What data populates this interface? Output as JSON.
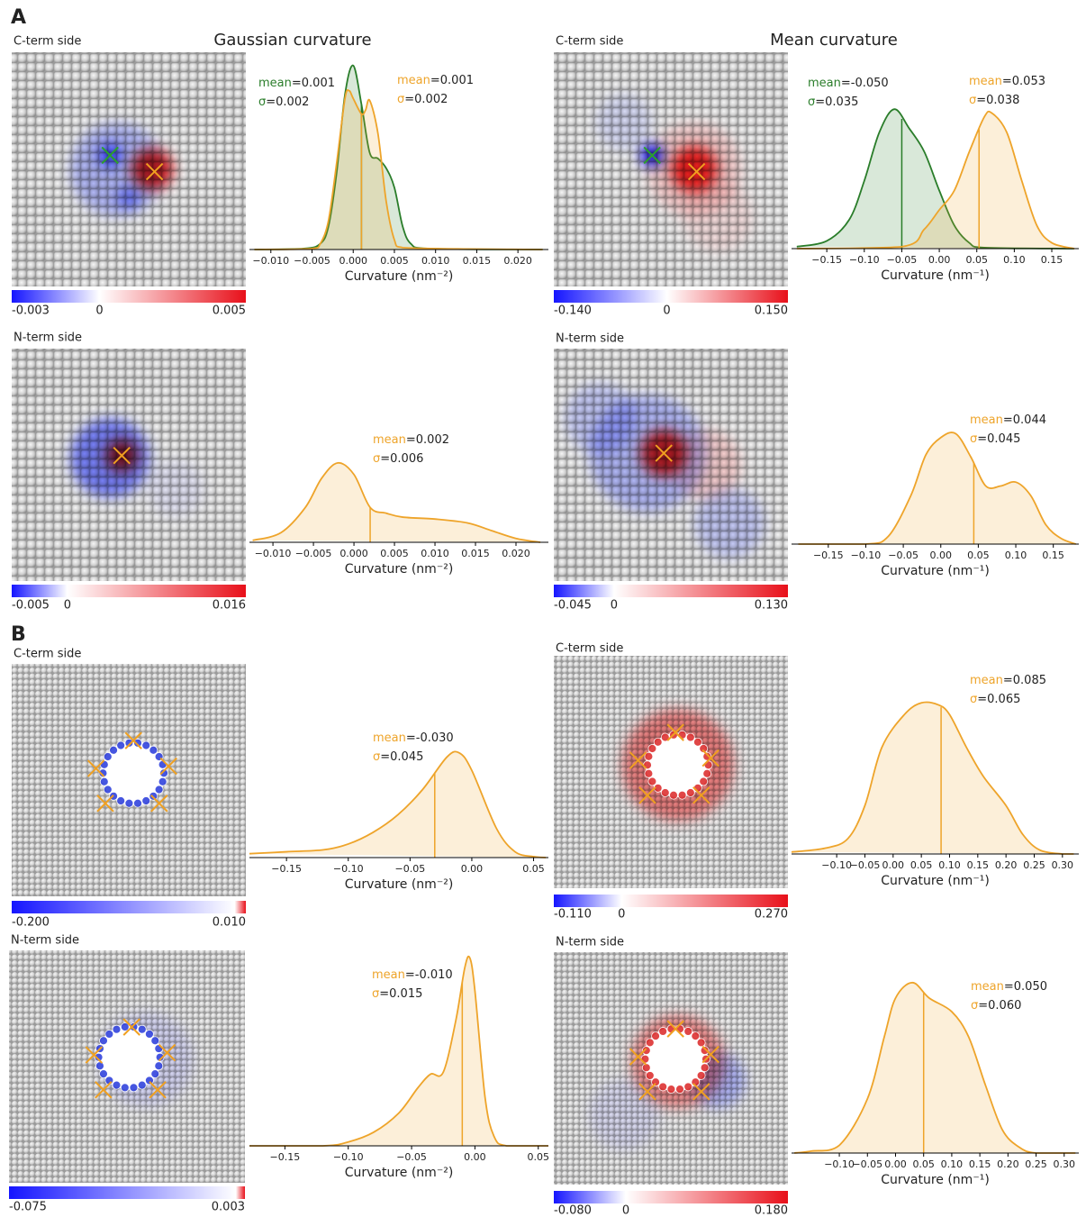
{
  "panel_labels": [
    "A",
    "B"
  ],
  "column_titles": [
    "Gaussian curvature",
    "Mean curvature"
  ],
  "images": [
    {
      "side": "C-term side",
      "colorbar_ticks": [
        -0.003,
        0,
        0.005
      ]
    },
    {
      "side": "C-term side",
      "colorbar_ticks": [
        {
          "value": -0.14,
          "label": "-0.140"
        },
        0,
        {
          "value": 0.15,
          "label": "0.150"
        }
      ]
    },
    {
      "side": "N-term side",
      "colorbar_ticks": [
        -0.005,
        0,
        0.016
      ]
    },
    {
      "side": "N-term side",
      "colorbar_ticks": [
        -0.045,
        0,
        {
          "value": 0.13,
          "label": "0.130"
        }
      ]
    },
    {
      "side": "C-term side",
      "colorbar_ticks": [
        {
          "value": -0.2,
          "label": "-0.200"
        },
        {
          "value": 0.01,
          "label": "0.010"
        }
      ]
    },
    {
      "side": "C-term side",
      "colorbar_ticks": [
        {
          "value": -0.11,
          "label": "-0.110"
        },
        0,
        {
          "value": 0.27,
          "label": "0.270"
        }
      ]
    },
    {
      "side": "N-term side",
      "colorbar_ticks": [
        -0.075,
        0.003
      ]
    },
    {
      "side": "N-term side",
      "colorbar_ticks": [
        {
          "value": -0.08,
          "label": "-0.080"
        },
        0,
        {
          "value": 0.18,
          "label": "0.180"
        }
      ]
    }
  ],
  "chart_data": [
    {
      "type": "density",
      "x_label": "Curvature (nm⁻²)",
      "xlim": [
        -0.0126,
        0.0237
      ],
      "ylim": [
        0,
        1
      ],
      "xticks": [
        {
          "value": -0.01,
          "label": "−0.010"
        },
        {
          "value": -0.005,
          "label": "−0.005"
        },
        {
          "value": 0,
          "label": "0.000"
        },
        0.005,
        {
          "value": 0.01,
          "label": "0.010"
        },
        0.015,
        {
          "value": 0.02,
          "label": "0.020"
        }
      ],
      "series": [
        {
          "color": "#2a7d2a",
          "x": [
            -0.012,
            -0.006,
            -0.004,
            -0.003,
            -0.002,
            -0.001,
            0,
            0.001,
            0.002,
            0.003,
            0.004,
            0.005,
            0.006,
            0.007,
            0.009,
            0.023
          ],
          "values": [
            0,
            0.005,
            0.03,
            0.12,
            0.4,
            0.8,
            0.95,
            0.75,
            0.5,
            0.47,
            0.42,
            0.32,
            0.12,
            0.03,
            0.005,
            0
          ],
          "mean": {
            "value": 0.001,
            "label": "mean=0.001"
          },
          "sigma": "σ=0.002"
        },
        {
          "color": "#eea42a",
          "x": [
            -0.012,
            -0.005,
            -0.004,
            -0.003,
            -0.002,
            -0.001,
            -0.0005,
            0,
            0.001,
            0.0015,
            0.002,
            0.003,
            0.004,
            0.005,
            0.006,
            0.023
          ],
          "values": [
            0,
            0.005,
            0.03,
            0.15,
            0.45,
            0.78,
            0.82,
            0.78,
            0.7,
            0.72,
            0.77,
            0.6,
            0.25,
            0.05,
            0.01,
            0
          ],
          "mean": {
            "value": 0.001,
            "label": "mean=0.001"
          },
          "sigma": "σ=0.002"
        }
      ]
    },
    {
      "type": "density",
      "x_label": "Curvature (nm⁻¹)",
      "xlim": [
        -0.197,
        0.186
      ],
      "ylim": [
        0,
        1
      ],
      "xticks": [
        {
          "value": -0.15,
          "label": "−0.15"
        },
        {
          "value": -0.1,
          "label": "−0.10"
        },
        {
          "value": -0.05,
          "label": "−0.05"
        },
        {
          "value": 0,
          "label": "0.00"
        },
        0.05,
        {
          "value": 0.1,
          "label": "0.10"
        },
        0.15
      ],
      "series": [
        {
          "color": "#2a7d2a",
          "x": [
            -0.19,
            -0.15,
            -0.12,
            -0.1,
            -0.08,
            -0.06,
            -0.04,
            -0.02,
            0,
            0.02,
            0.04,
            0.06,
            0.18
          ],
          "values": [
            0.01,
            0.04,
            0.15,
            0.35,
            0.6,
            0.72,
            0.62,
            0.5,
            0.3,
            0.12,
            0.03,
            0.005,
            0
          ],
          "mean": {
            "value": -0.05,
            "label": "mean=-0.050"
          },
          "sigma": "σ=0.035"
        },
        {
          "color": "#eea42a",
          "x": [
            -0.19,
            -0.05,
            -0.02,
            0,
            0.02,
            0.04,
            0.06,
            0.07,
            0.09,
            0.11,
            0.13,
            0.15,
            0.18
          ],
          "values": [
            0,
            0.01,
            0.1,
            0.2,
            0.3,
            0.5,
            0.68,
            0.7,
            0.6,
            0.35,
            0.12,
            0.03,
            0
          ],
          "mean": {
            "value": 0.053,
            "label": "mean=0.053"
          },
          "sigma": "σ=0.038"
        }
      ]
    },
    {
      "type": "density",
      "x_label": "Curvature (nm⁻²)",
      "xlim": [
        -0.0129,
        0.024
      ],
      "ylim": [
        0,
        1
      ],
      "xticks": [
        {
          "value": -0.01,
          "label": "−0.010"
        },
        {
          "value": -0.005,
          "label": "−0.005"
        },
        {
          "value": 0,
          "label": "0.000"
        },
        0.005,
        {
          "value": 0.01,
          "label": "0.010"
        },
        0.015,
        {
          "value": 0.02,
          "label": "0.020"
        }
      ],
      "series": [
        {
          "color": "#eea42a",
          "x": [
            -0.0125,
            -0.009,
            -0.006,
            -0.004,
            -0.002,
            0,
            0.002,
            0.004,
            0.006,
            0.01,
            0.014,
            0.017,
            0.02,
            0.023
          ],
          "values": [
            0.01,
            0.05,
            0.18,
            0.33,
            0.41,
            0.35,
            0.18,
            0.15,
            0.13,
            0.12,
            0.1,
            0.06,
            0.02,
            0
          ],
          "mean": {
            "value": 0.002,
            "label": "mean=0.002"
          },
          "sigma": "σ=0.006"
        }
      ]
    },
    {
      "type": "density",
      "x_label": "Curvature (nm⁻¹)",
      "xlim": [
        -0.199,
        0.184
      ],
      "ylim": [
        0,
        1
      ],
      "xticks": [
        {
          "value": -0.15,
          "label": "−0.15"
        },
        {
          "value": -0.1,
          "label": "−0.10"
        },
        {
          "value": -0.05,
          "label": "−0.05"
        },
        {
          "value": 0,
          "label": "0.00"
        },
        0.05,
        {
          "value": 0.1,
          "label": "0.10"
        },
        0.15
      ],
      "series": [
        {
          "color": "#eea42a",
          "x": [
            -0.19,
            -0.1,
            -0.07,
            -0.04,
            -0.02,
            0,
            0.02,
            0.04,
            0.06,
            0.08,
            0.1,
            0.12,
            0.14,
            0.16,
            0.18
          ],
          "values": [
            0,
            0,
            0.04,
            0.25,
            0.46,
            0.55,
            0.57,
            0.45,
            0.3,
            0.3,
            0.32,
            0.25,
            0.1,
            0.03,
            0
          ],
          "mean": {
            "value": 0.044,
            "label": "mean=0.044"
          },
          "sigma": "σ=0.045"
        }
      ]
    },
    {
      "type": "density",
      "x_label": "Curvature (nm⁻²)",
      "xlim": [
        -0.18,
        0.062
      ],
      "ylim": [
        0,
        1
      ],
      "xticks": [
        {
          "value": -0.15,
          "label": "−0.15"
        },
        {
          "value": -0.1,
          "label": "−0.10"
        },
        {
          "value": -0.05,
          "label": "−0.05"
        },
        {
          "value": 0,
          "label": "0.00"
        },
        0.05
      ],
      "series": [
        {
          "color": "#eea42a",
          "x": [
            -0.18,
            -0.15,
            -0.12,
            -0.1,
            -0.08,
            -0.06,
            -0.04,
            -0.02,
            -0.01,
            0,
            0.02,
            0.035,
            0.05,
            0.06
          ],
          "values": [
            0.02,
            0.03,
            0.04,
            0.07,
            0.13,
            0.22,
            0.35,
            0.52,
            0.54,
            0.45,
            0.15,
            0.03,
            0.005,
            0
          ],
          "mean": {
            "value": -0.03,
            "label": "mean=-0.030"
          },
          "sigma": "σ=0.045"
        }
      ]
    },
    {
      "type": "density",
      "x_label": "Curvature (nm⁻¹)",
      "xlim": [
        -0.18,
        0.329
      ],
      "ylim": [
        0,
        1
      ],
      "xticks": [
        {
          "value": -0.1,
          "label": "−0.10"
        },
        {
          "value": -0.05,
          "label": "−0.05"
        },
        {
          "value": 0,
          "label": "0.00"
        },
        0.05,
        {
          "value": 0.1,
          "label": "0.10"
        },
        0.15,
        {
          "value": 0.2,
          "label": "0.20"
        },
        0.25,
        {
          "value": 0.3,
          "label": "0.30"
        }
      ],
      "series": [
        {
          "color": "#eea42a",
          "x": [
            -0.18,
            -0.12,
            -0.08,
            -0.05,
            -0.02,
            0.02,
            0.05,
            0.08,
            0.1,
            0.13,
            0.16,
            0.2,
            0.23,
            0.26,
            0.3,
            0.32
          ],
          "values": [
            0.01,
            0.03,
            0.08,
            0.25,
            0.55,
            0.72,
            0.78,
            0.77,
            0.72,
            0.55,
            0.4,
            0.25,
            0.1,
            0.02,
            0,
            0
          ],
          "mean": {
            "value": 0.085,
            "label": "mean=0.085"
          },
          "sigma": "σ=0.065"
        }
      ]
    },
    {
      "type": "density",
      "x_label": "Curvature (nm⁻²)",
      "xlim": [
        -0.178,
        0.058
      ],
      "ylim": [
        0,
        1
      ],
      "xticks": [
        {
          "value": -0.15,
          "label": "−0.15"
        },
        {
          "value": -0.1,
          "label": "−0.10"
        },
        {
          "value": -0.05,
          "label": "−0.05"
        },
        {
          "value": 0,
          "label": "0.00"
        },
        0.05
      ],
      "series": [
        {
          "color": "#eea42a",
          "x": [
            -0.178,
            -0.12,
            -0.1,
            -0.08,
            -0.06,
            -0.045,
            -0.035,
            -0.025,
            -0.015,
            -0.008,
            -0.004,
            0,
            0.008,
            0.015,
            0.025,
            0.058
          ],
          "values": [
            0,
            0,
            0.02,
            0.07,
            0.17,
            0.3,
            0.37,
            0.38,
            0.65,
            0.92,
            0.97,
            0.8,
            0.25,
            0.05,
            0,
            0
          ],
          "mean": {
            "value": -0.01,
            "label": "mean=-0.010"
          },
          "sigma": "σ=0.015"
        }
      ]
    },
    {
      "type": "density",
      "x_label": "Curvature (nm⁻¹)",
      "xlim": [
        -0.185,
        0.326
      ],
      "ylim": [
        0,
        1
      ],
      "xticks": [
        {
          "value": -0.1,
          "label": "−0.10"
        },
        {
          "value": -0.05,
          "label": "−0.05"
        },
        {
          "value": 0,
          "label": "0.00"
        },
        0.05,
        {
          "value": 0.1,
          "label": "0.10"
        },
        0.15,
        {
          "value": 0.2,
          "label": "0.20"
        },
        0.25,
        {
          "value": 0.3,
          "label": "0.30"
        }
      ],
      "series": [
        {
          "color": "#eea42a",
          "x": [
            -0.18,
            -0.15,
            -0.1,
            -0.05,
            -0.02,
            0,
            0.03,
            0.06,
            0.1,
            0.13,
            0.16,
            0.19,
            0.22,
            0.25,
            0.32
          ],
          "values": [
            0,
            0.01,
            0.04,
            0.28,
            0.6,
            0.8,
            0.88,
            0.8,
            0.73,
            0.6,
            0.35,
            0.12,
            0.03,
            0,
            0
          ],
          "mean": {
            "value": 0.05,
            "label": "mean=0.050"
          },
          "sigma": "σ=0.060"
        }
      ]
    }
  ]
}
